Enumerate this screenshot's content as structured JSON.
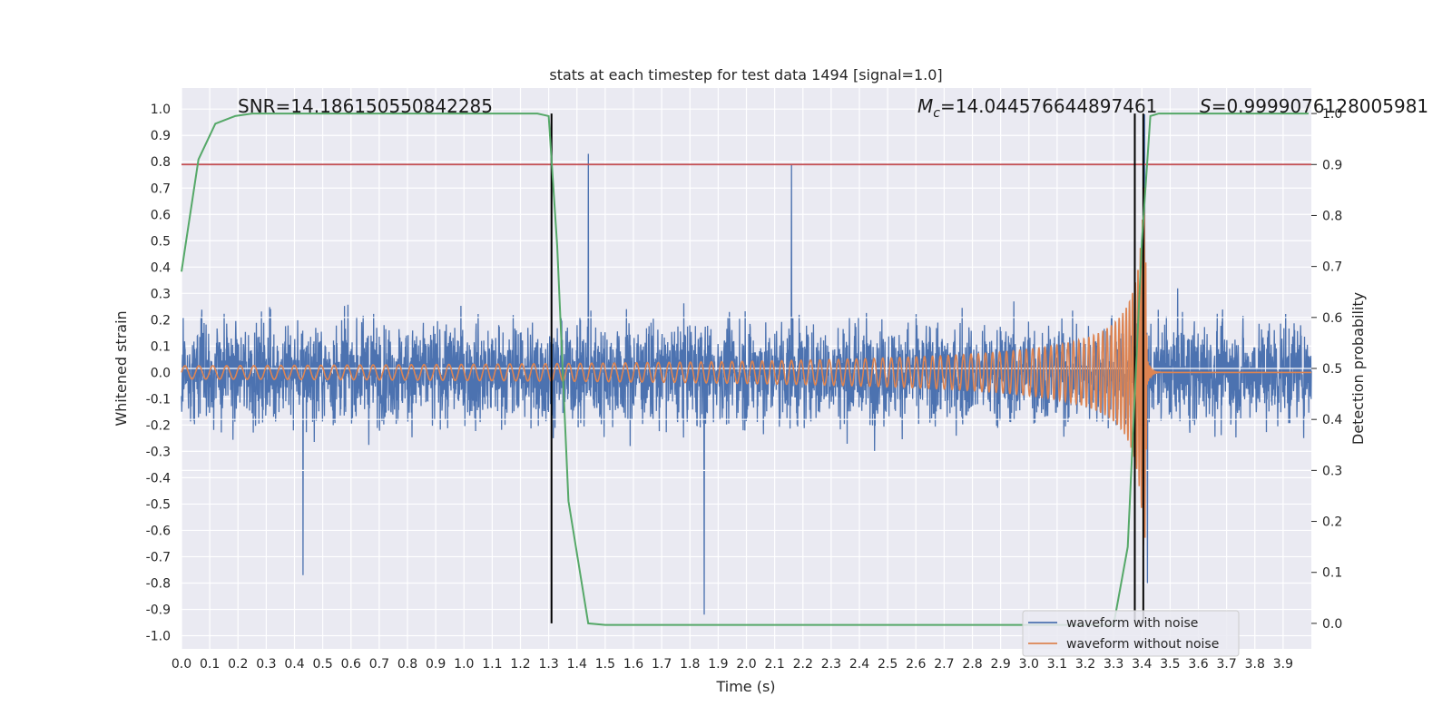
{
  "chart_data": {
    "type": "line",
    "title": "stats at each timestep for test data 1494 [signal=1.0]",
    "xlabel": "Time (s)",
    "ylabel": "Whitened strain",
    "ylabel_right": "Detection probability",
    "xlim": [
      0.0,
      4.0
    ],
    "ylim": [
      -1.05,
      1.08
    ],
    "ylim_right": [
      -0.05,
      1.05
    ],
    "x_ticks": [
      "0.0",
      "0.1",
      "0.2",
      "0.3",
      "0.4",
      "0.5",
      "0.6",
      "0.7",
      "0.8",
      "0.9",
      "1.0",
      "1.1",
      "1.2",
      "1.3",
      "1.4",
      "1.5",
      "1.6",
      "1.7",
      "1.8",
      "1.9",
      "2.0",
      "2.1",
      "2.2",
      "2.3",
      "2.4",
      "2.5",
      "2.6",
      "2.7",
      "2.8",
      "2.9",
      "3.0",
      "3.1",
      "3.2",
      "3.3",
      "3.4",
      "3.5",
      "3.6",
      "3.7",
      "3.8",
      "3.9"
    ],
    "y_ticks": [
      "1.0",
      "0.9",
      "0.8",
      "0.7",
      "0.6",
      "0.5",
      "0.4",
      "0.3",
      "0.2",
      "0.1",
      "0.0",
      "-0.1",
      "-0.2",
      "-0.3",
      "-0.4",
      "-0.5",
      "-0.6",
      "-0.7",
      "-0.8",
      "-0.9",
      "-1.0"
    ],
    "y_ticks_right": [
      "1.0",
      "0.9",
      "0.8",
      "0.7",
      "0.6",
      "0.5",
      "0.4",
      "0.3",
      "0.2",
      "0.1",
      "0.0"
    ],
    "grid": true,
    "legend_position": "lower-right",
    "annotations": {
      "snr": "SNR=14.186150550842285",
      "mc_symbol": "M",
      "mc_sub": "c",
      "mc_value": "=14.044576644897461",
      "s_symbol": "S",
      "s_value": "=0.9999076128005981"
    },
    "series": [
      {
        "name": "waveform with noise",
        "color": "#4c72b0",
        "noise_amplitude": 0.22,
        "peaks": [
          [
            0.43,
            -0.77
          ],
          [
            1.44,
            0.83
          ],
          [
            1.85,
            -0.92
          ],
          [
            2.16,
            0.79
          ],
          [
            3.41,
            0.98
          ],
          [
            3.42,
            -0.8
          ]
        ]
      },
      {
        "name": "waveform without noise",
        "color": "#dd8452",
        "start_amplitude": 0.025,
        "merger_time": 3.42,
        "merger_amplitude": 0.72
      },
      {
        "name": "detection probability",
        "color": "#55a868",
        "x": [
          0.0,
          0.06,
          0.12,
          0.19,
          0.25,
          1.26,
          1.3,
          1.33,
          1.37,
          1.44,
          1.5,
          1.55,
          3.3,
          3.35,
          3.4,
          3.43,
          3.46,
          3.99
        ],
        "y": [
          0.69,
          0.91,
          0.98,
          0.995,
          1.0,
          1.0,
          0.995,
          0.74,
          0.24,
          0.0,
          -0.003,
          -0.003,
          -0.003,
          0.15,
          0.75,
          0.995,
          1.0,
          1.0
        ]
      },
      {
        "name": "threshold",
        "color": "#c44e52",
        "axis": "right",
        "value": 0.9
      }
    ],
    "vertical_lines": [
      {
        "x": 1.31,
        "color": "#000000"
      },
      {
        "x": 3.375,
        "color": "#000000"
      },
      {
        "x": 3.405,
        "color": "#000000"
      }
    ],
    "horizontal_lines_white": [
      0.5,
      0.6,
      0.4,
      0.3
    ]
  }
}
